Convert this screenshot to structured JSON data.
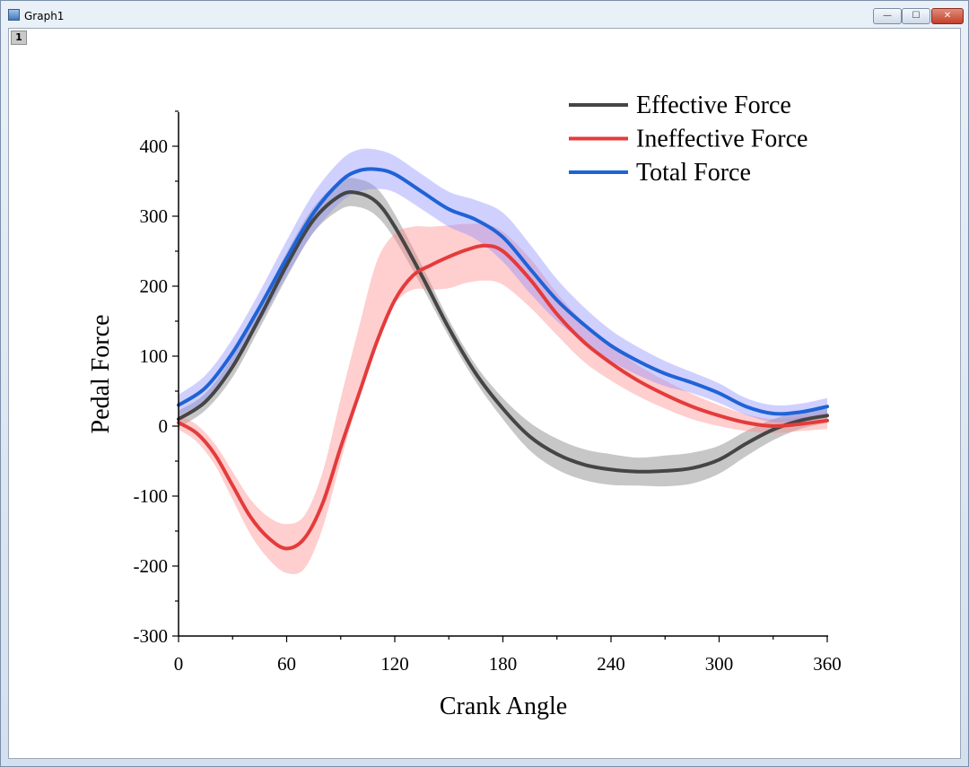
{
  "window": {
    "title": "Graph1",
    "layer_tab": "1",
    "min_symbol": "—",
    "max_symbol": "☐",
    "close_symbol": "✕"
  },
  "chart_data": {
    "type": "line",
    "title": "",
    "xlabel": "Crank Angle",
    "ylabel": "Pedal Force",
    "xlim": [
      0,
      360
    ],
    "ylim": [
      -300,
      450
    ],
    "xticks": [
      0,
      60,
      120,
      180,
      240,
      300,
      360
    ],
    "yticks": [
      -300,
      -200,
      -100,
      0,
      100,
      200,
      300,
      400
    ],
    "legend_position": "top-right",
    "grid": false,
    "series": [
      {
        "name": "Effective Force",
        "color": "#454545",
        "band_color": "#7a7a7a",
        "x": [
          0,
          15,
          30,
          45,
          60,
          75,
          90,
          100,
          110,
          120,
          135,
          150,
          165,
          180,
          195,
          210,
          225,
          240,
          255,
          270,
          285,
          300,
          315,
          330,
          345,
          360
        ],
        "y": [
          10,
          35,
          85,
          155,
          230,
          295,
          330,
          333,
          320,
          285,
          215,
          140,
          75,
          25,
          -15,
          -40,
          -55,
          -62,
          -65,
          -64,
          -60,
          -48,
          -25,
          -5,
          8,
          15
        ],
        "band": [
          12,
          12,
          15,
          15,
          18,
          18,
          20,
          20,
          20,
          18,
          15,
          12,
          12,
          15,
          20,
          22,
          22,
          22,
          20,
          22,
          22,
          20,
          18,
          15,
          12,
          10
        ]
      },
      {
        "name": "Ineffective Force",
        "color": "#e43b3b",
        "band_color": "#ff8a8a",
        "x": [
          0,
          10,
          20,
          30,
          40,
          50,
          60,
          70,
          80,
          90,
          100,
          110,
          120,
          130,
          140,
          150,
          160,
          170,
          180,
          195,
          210,
          225,
          240,
          255,
          270,
          285,
          300,
          315,
          330,
          345,
          360
        ],
        "y": [
          5,
          -10,
          -40,
          -85,
          -130,
          -160,
          -175,
          -160,
          -110,
          -30,
          45,
          120,
          180,
          215,
          230,
          242,
          252,
          258,
          250,
          210,
          160,
          120,
          90,
          65,
          45,
          28,
          15,
          5,
          0,
          3,
          8
        ],
        "band": [
          10,
          12,
          15,
          20,
          25,
          30,
          35,
          38,
          40,
          45,
          50,
          55,
          50,
          45,
          45,
          45,
          42,
          40,
          38,
          35,
          30,
          28,
          25,
          22,
          20,
          18,
          15,
          12,
          10,
          10,
          12
        ],
        "band_offset": [
          0,
          0,
          0,
          0,
          0,
          0,
          0,
          -5,
          5,
          25,
          45,
          60,
          45,
          25,
          10,
          0,
          -5,
          -10,
          -10,
          -5,
          0,
          0,
          0,
          0,
          0,
          0,
          0,
          0,
          0,
          0,
          0
        ]
      },
      {
        "name": "Total Force",
        "color": "#1f63d6",
        "band_color": "#8f8fff",
        "x": [
          0,
          15,
          30,
          45,
          60,
          75,
          90,
          100,
          110,
          120,
          135,
          150,
          165,
          180,
          195,
          210,
          225,
          240,
          255,
          270,
          285,
          300,
          315,
          330,
          345,
          360
        ],
        "y": [
          30,
          55,
          105,
          170,
          240,
          305,
          350,
          365,
          367,
          360,
          335,
          310,
          295,
          270,
          225,
          180,
          145,
          115,
          93,
          75,
          62,
          47,
          28,
          18,
          20,
          28
        ],
        "band": [
          15,
          18,
          20,
          22,
          25,
          28,
          30,
          30,
          28,
          26,
          25,
          25,
          28,
          35,
          35,
          30,
          25,
          22,
          20,
          18,
          15,
          14,
          12,
          12,
          12,
          12
        ]
      }
    ]
  }
}
